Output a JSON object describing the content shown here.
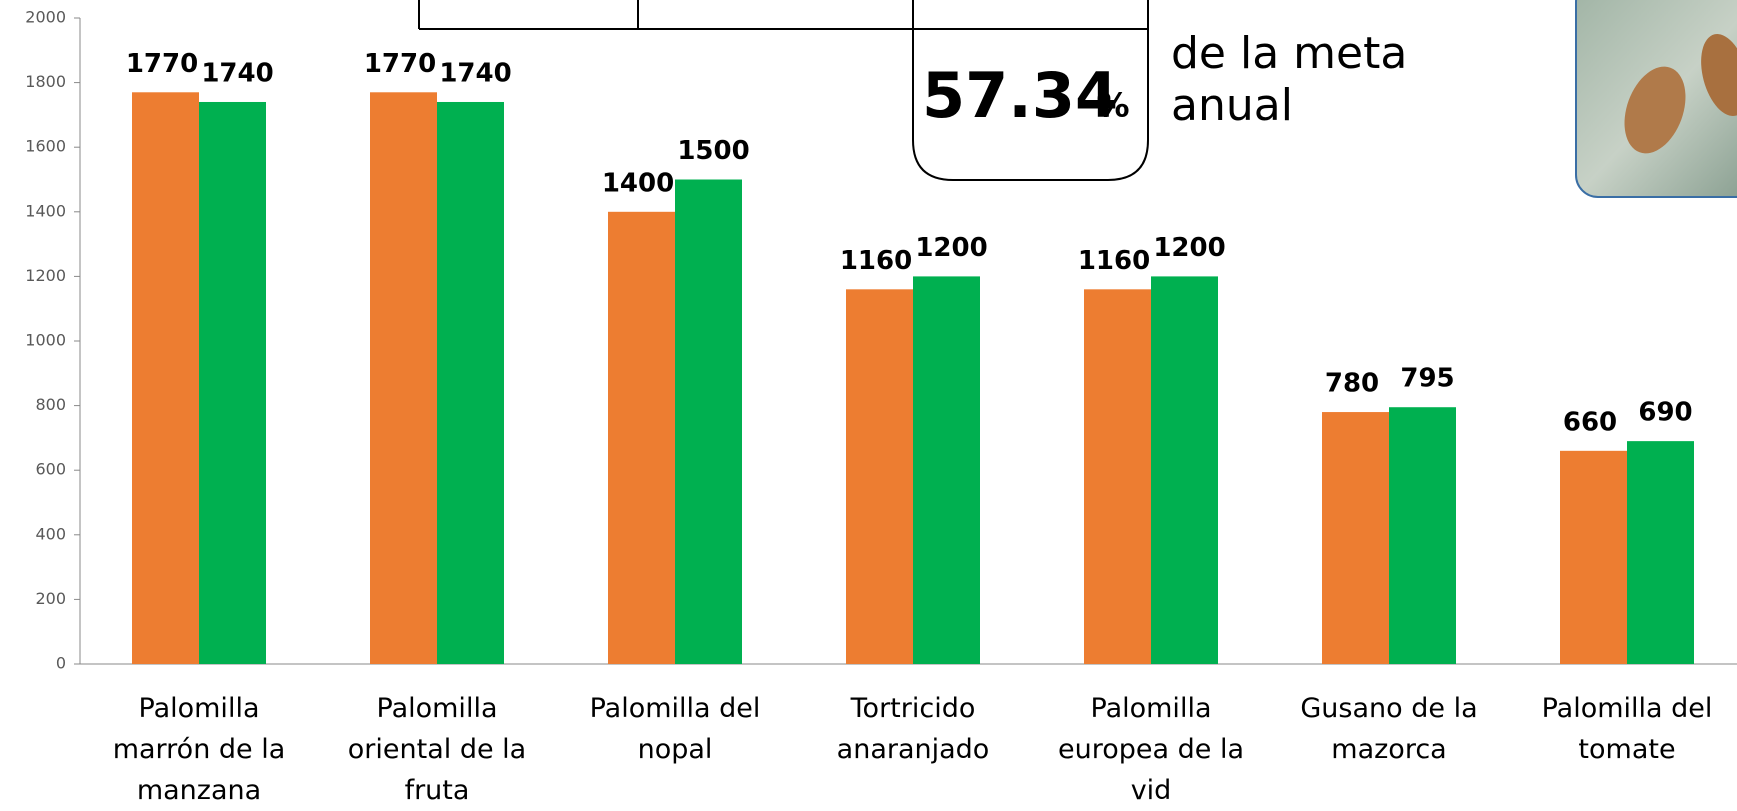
{
  "chart_data": {
    "type": "bar",
    "categories": [
      "Palomilla marrón de la manzana",
      "Palomilla oriental de la fruta",
      "Palomilla del nopal",
      "Tortricido anaranjado",
      "Palomilla europea de la vid",
      "Gusano de la mazorca",
      "Palomilla del tomate"
    ],
    "series": [
      {
        "color": "#ed7d31",
        "values": [
          1770,
          1770,
          1400,
          1160,
          1160,
          780,
          660
        ]
      },
      {
        "color": "#00b050",
        "values": [
          1740,
          1740,
          1500,
          1200,
          1200,
          795,
          690
        ]
      }
    ],
    "ylim": [
      0,
      2000
    ],
    "yticks": [
      0,
      200,
      400,
      600,
      800,
      1000,
      1200,
      1400,
      1600,
      1800,
      2000
    ],
    "grid": false,
    "annotations": {
      "percent_value": "57.34",
      "percent_sign": "%",
      "caption_line1": "de la meta",
      "caption_line2": "anual"
    }
  }
}
